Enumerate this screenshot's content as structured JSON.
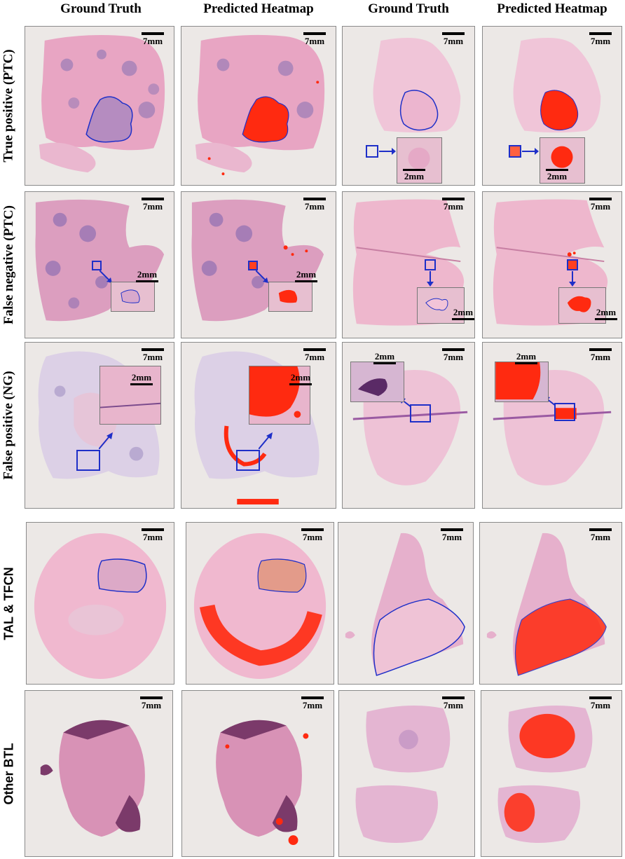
{
  "columns": [
    {
      "label": "Ground Truth"
    },
    {
      "label": "Predicted Heatmap"
    },
    {
      "label": "Ground Truth"
    },
    {
      "label": "Predicted Heatmap"
    }
  ],
  "rows": [
    {
      "label": "True positive (PTC)"
    },
    {
      "label": "False negative (PTC)"
    },
    {
      "label": "False positive (NG)"
    },
    {
      "label": "TAL & TFCN"
    },
    {
      "label": "Other BTL"
    }
  ],
  "scale_bars": {
    "main": "7mm",
    "inset": "2mm"
  },
  "colors": {
    "tissue": "#e9a6c2",
    "nuclei": "#9c78b8",
    "annotation": "#1e2fc8",
    "heatmap": "#ff2a10",
    "background": "#ece8e6"
  }
}
